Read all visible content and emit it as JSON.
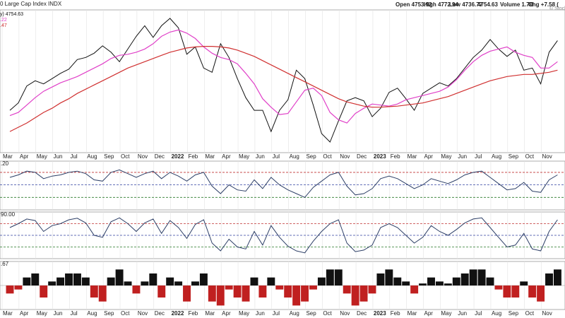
{
  "chart_data": [
    {
      "type": "line",
      "title": "0 Large Cap Index INDX",
      "annotations": [
        "Open 4753.92",
        "High 4772.94",
        "Low 4736.77",
        "4754.63",
        "Volume 1.7B",
        "Chg +7.58 (",
        "© StockCh"
      ],
      "categories": [
        "Mar",
        null,
        "Apr",
        null,
        "May",
        null,
        "Jun",
        null,
        "Jul",
        null,
        "Aug",
        null,
        "Sep",
        null,
        "Oct",
        null,
        "Nov",
        null,
        "Dec",
        null,
        "2022",
        null,
        "Feb",
        null,
        "Mar",
        null,
        "Apr",
        null,
        "May",
        null,
        "Jun",
        null,
        "Jul",
        null,
        "Aug",
        null,
        "Sep",
        null,
        "Oct",
        null,
        "Nov",
        null,
        "Dec",
        null,
        "2023",
        null,
        "Feb",
        null,
        "Mar",
        null,
        "Apr",
        null,
        "May",
        null,
        "Jun",
        null,
        "Jul",
        null,
        "Aug",
        null,
        "Sep",
        null,
        "Oct",
        null,
        "Nov",
        null
      ],
      "ylim": [
        3500,
        4850
      ],
      "series": [
        {
          "name": "y) 4754.63",
          "color": "#111111",
          "width": 1,
          "values": [
            3900,
            3970,
            4130,
            4180,
            4150,
            4200,
            4250,
            4290,
            4380,
            4400,
            4440,
            4510,
            4450,
            4360,
            4480,
            4600,
            4700,
            4590,
            4700,
            4770,
            4680,
            4430,
            4500,
            4300,
            4260,
            4530,
            4400,
            4200,
            4020,
            3900,
            3900,
            3700,
            3900,
            4000,
            4280,
            4200,
            3950,
            3680,
            3600,
            3800,
            3990,
            4020,
            3990,
            3840,
            3920,
            4070,
            4110,
            4010,
            3900,
            4060,
            4110,
            4160,
            4130,
            4200,
            4300,
            4400,
            4470,
            4570,
            4480,
            4410,
            4470,
            4280,
            4300,
            4150,
            4450,
            4560
          ]
        },
        {
          "name": ".22",
          "color": "#e040c8",
          "width": 1.2,
          "values": [
            3850,
            3880,
            3950,
            4020,
            4080,
            4120,
            4160,
            4190,
            4220,
            4260,
            4300,
            4340,
            4390,
            4420,
            4430,
            4450,
            4480,
            4530,
            4600,
            4640,
            4660,
            4630,
            4580,
            4500,
            4440,
            4400,
            4380,
            4340,
            4250,
            4150,
            4010,
            3930,
            3860,
            3870,
            3980,
            4090,
            4110,
            4040,
            3880,
            3810,
            3780,
            3870,
            3920,
            3960,
            3950,
            3940,
            3960,
            4000,
            4020,
            4040,
            4060,
            4080,
            4120,
            4190,
            4280,
            4360,
            4420,
            4460,
            4480,
            4500,
            4450,
            4420,
            4400,
            4300,
            4300,
            4360
          ]
        },
        {
          "name": ".47",
          "color": "#d03030",
          "width": 1.2,
          "values": [
            3700,
            3740,
            3780,
            3830,
            3880,
            3920,
            3970,
            4010,
            4060,
            4100,
            4140,
            4180,
            4220,
            4260,
            4300,
            4330,
            4360,
            4390,
            4420,
            4450,
            4470,
            4490,
            4500,
            4505,
            4505,
            4500,
            4490,
            4470,
            4440,
            4410,
            4370,
            4330,
            4290,
            4250,
            4210,
            4170,
            4130,
            4090,
            4050,
            4010,
            3980,
            3960,
            3940,
            3930,
            3930,
            3935,
            3940,
            3950,
            3960,
            3970,
            3990,
            4010,
            4030,
            4060,
            4090,
            4120,
            4150,
            4180,
            4200,
            4220,
            4230,
            4240,
            4240,
            4250,
            4260,
            4280
          ]
        }
      ]
    },
    {
      "type": "line",
      "title": ".20",
      "ylim": [
        10,
        88
      ],
      "ref_lines": [
        {
          "value": 70,
          "color": "#c03030"
        },
        {
          "value": 50,
          "color": "#3040a0"
        },
        {
          "value": 30,
          "color": "#2a7a2a"
        }
      ],
      "series": [
        {
          "color": "#2c3e66",
          "width": 1,
          "values": [
            62,
            66,
            72,
            70,
            60,
            64,
            66,
            70,
            72,
            68,
            58,
            56,
            70,
            74,
            68,
            62,
            68,
            72,
            60,
            70,
            64,
            56,
            66,
            70,
            48,
            36,
            50,
            42,
            40,
            58,
            44,
            62,
            50,
            42,
            36,
            30,
            46,
            56,
            66,
            70,
            48,
            34,
            36,
            44,
            60,
            64,
            60,
            52,
            44,
            50,
            60,
            56,
            52,
            58,
            66,
            70,
            72,
            62,
            52,
            42,
            44,
            54,
            40,
            38,
            58,
            66
          ]
        }
      ]
    },
    {
      "type": "line",
      "title": "90.00",
      "ylim": [
        -10,
        110
      ],
      "ref_lines": [
        {
          "value": 80,
          "color": "#c03030"
        },
        {
          "value": 50,
          "color": "#3040a0"
        },
        {
          "value": 20,
          "color": "#2a7a2a"
        }
      ],
      "series": [
        {
          "color": "#2c3e66",
          "width": 1,
          "values": [
            70,
            80,
            92,
            88,
            60,
            75,
            80,
            90,
            94,
            82,
            50,
            45,
            85,
            95,
            80,
            60,
            82,
            92,
            55,
            88,
            70,
            42,
            78,
            90,
            30,
            10,
            40,
            20,
            15,
            60,
            25,
            75,
            45,
            22,
            10,
            5,
            35,
            60,
            80,
            90,
            30,
            8,
            12,
            25,
            70,
            80,
            70,
            50,
            30,
            45,
            75,
            60,
            50,
            65,
            82,
            92,
            95,
            70,
            45,
            20,
            25,
            55,
            15,
            10,
            60,
            90
          ]
        }
      ]
    },
    {
      "type": "bar",
      "title": ".67",
      "ylim": [
        -6,
        6
      ],
      "pos_color": "#111111",
      "neg_color": "#c02020",
      "values": [
        -2,
        -1,
        2,
        3,
        -3,
        1,
        2,
        3,
        3,
        2,
        -3,
        -4,
        2,
        4,
        1,
        -2,
        1,
        3,
        -3,
        2,
        1,
        -4,
        1,
        3,
        -4,
        -5,
        -1,
        -3,
        -4,
        2,
        -3,
        2,
        -1,
        -3,
        -5,
        -4,
        -1,
        2,
        4,
        4,
        -2,
        -5,
        -4,
        -2,
        3,
        4,
        2,
        1,
        -2,
        0.5,
        2,
        1,
        0.5,
        2,
        3,
        4,
        4,
        2,
        -1,
        -3,
        -3,
        1,
        -3,
        -4,
        3,
        4
      ]
    }
  ]
}
